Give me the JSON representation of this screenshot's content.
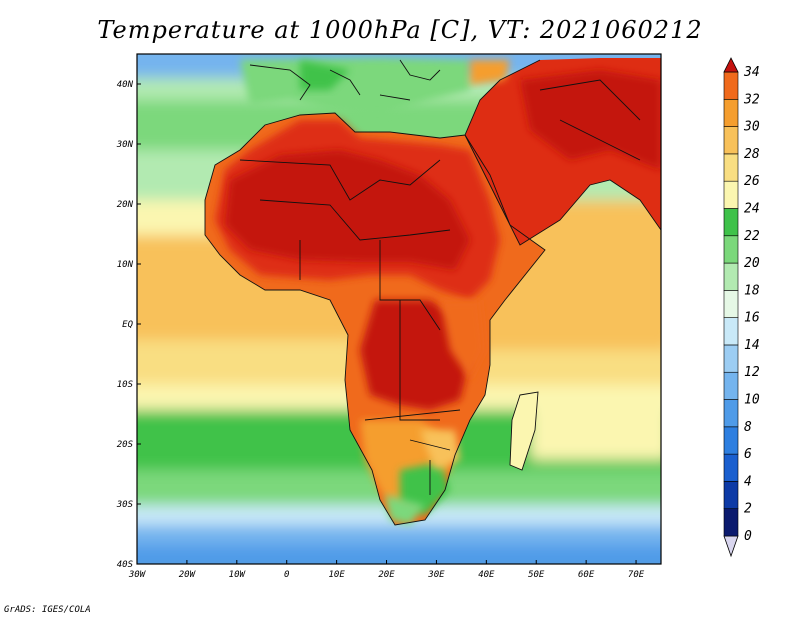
{
  "title": "Temperature at 1000hPa [C], VT: 2021060212",
  "credit": "GrADS: IGES/COLA",
  "map": {
    "lon_range": [
      -30,
      75
    ],
    "lat_range": [
      -40,
      45
    ],
    "lon_ticks": [
      "30W",
      "20W",
      "10W",
      "0",
      "10E",
      "20E",
      "30E",
      "40E",
      "50E",
      "60E",
      "70E"
    ],
    "lat_ticks": [
      "40N",
      "30N",
      "20N",
      "10N",
      "EQ",
      "10S",
      "20S",
      "30S",
      "40S"
    ]
  },
  "colorbar": {
    "labels": [
      "34",
      "32",
      "30",
      "28",
      "26",
      "24",
      "22",
      "20",
      "18",
      "16",
      "14",
      "12",
      "10",
      "8",
      "6",
      "4",
      "2",
      "0"
    ],
    "colors": [
      "#0b1a6e",
      "#0d3aa6",
      "#1a5fcf",
      "#2e7fe0",
      "#4f9be8",
      "#74b4ee",
      "#9ccdf3",
      "#c9e9f8",
      "#e6f8e6",
      "#b2eab1",
      "#7bd87b",
      "#3fc24a",
      "#fbf6b0",
      "#f9de82",
      "#f8c15a",
      "#f59e2f",
      "#f06a1c",
      "#de2d13",
      "#c4120f"
    ]
  }
}
